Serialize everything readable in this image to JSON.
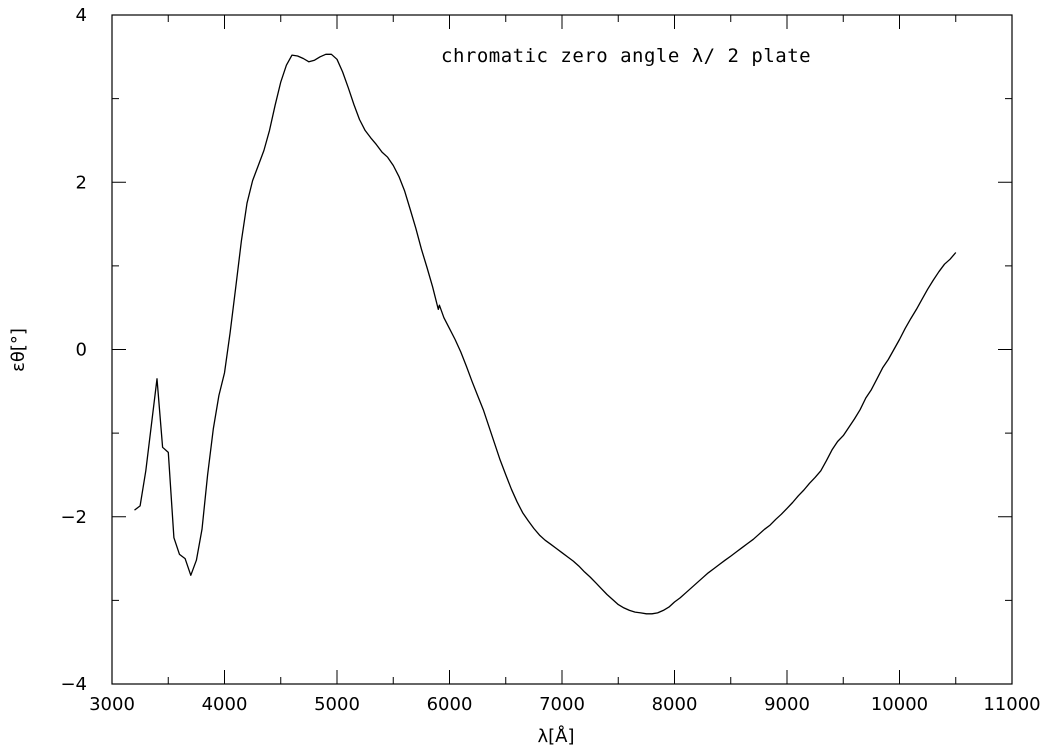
{
  "chart_data": {
    "type": "line",
    "title": "",
    "annotation": "chromatic zero angle λ/ 2 plate",
    "xlabel": "λ[Å]",
    "ylabel": "εθ[°]",
    "xlim": [
      3000,
      11000
    ],
    "ylim": [
      -4,
      4
    ],
    "x_major_ticks": [
      3000,
      4000,
      5000,
      6000,
      7000,
      8000,
      9000,
      10000,
      11000
    ],
    "x_tick_labels": [
      "3000",
      "4000",
      "5000",
      "6000",
      "7000",
      "8000",
      "9000",
      "10000",
      "11000"
    ],
    "y_major_ticks": [
      -4,
      -2,
      0,
      2,
      4
    ],
    "y_tick_labels": [
      "−4",
      "−2",
      "0",
      "2",
      "4"
    ],
    "x_minor_step": 1000,
    "y_minor_step": 1,
    "grid": false,
    "series": [
      {
        "points": [
          [
            3200,
            -1.92
          ],
          [
            3250,
            -1.87
          ],
          [
            3300,
            -1.45
          ],
          [
            3350,
            -0.9
          ],
          [
            3400,
            -0.35
          ],
          [
            3450,
            -1.17
          ],
          [
            3500,
            -1.23
          ],
          [
            3550,
            -2.25
          ],
          [
            3600,
            -2.45
          ],
          [
            3650,
            -2.5
          ],
          [
            3700,
            -2.7
          ],
          [
            3750,
            -2.52
          ],
          [
            3800,
            -2.15
          ],
          [
            3850,
            -1.5
          ],
          [
            3900,
            -0.95
          ],
          [
            3950,
            -0.55
          ],
          [
            4000,
            -0.28
          ],
          [
            4050,
            0.2
          ],
          [
            4100,
            0.75
          ],
          [
            4150,
            1.3
          ],
          [
            4200,
            1.75
          ],
          [
            4250,
            2.02
          ],
          [
            4300,
            2.2
          ],
          [
            4350,
            2.38
          ],
          [
            4400,
            2.62
          ],
          [
            4450,
            2.92
          ],
          [
            4500,
            3.2
          ],
          [
            4550,
            3.4
          ],
          [
            4600,
            3.52
          ],
          [
            4650,
            3.51
          ],
          [
            4700,
            3.48
          ],
          [
            4750,
            3.44
          ],
          [
            4800,
            3.46
          ],
          [
            4850,
            3.5
          ],
          [
            4900,
            3.53
          ],
          [
            4950,
            3.53
          ],
          [
            5000,
            3.47
          ],
          [
            5050,
            3.32
          ],
          [
            5100,
            3.13
          ],
          [
            5150,
            2.93
          ],
          [
            5200,
            2.75
          ],
          [
            5250,
            2.62
          ],
          [
            5300,
            2.53
          ],
          [
            5350,
            2.45
          ],
          [
            5400,
            2.36
          ],
          [
            5450,
            2.3
          ],
          [
            5500,
            2.2
          ],
          [
            5550,
            2.07
          ],
          [
            5600,
            1.9
          ],
          [
            5650,
            1.68
          ],
          [
            5700,
            1.45
          ],
          [
            5750,
            1.2
          ],
          [
            5800,
            0.98
          ],
          [
            5850,
            0.75
          ],
          [
            5900,
            0.48
          ],
          [
            5910,
            0.53
          ],
          [
            5950,
            0.38
          ],
          [
            6000,
            0.25
          ],
          [
            6050,
            0.12
          ],
          [
            6100,
            -0.03
          ],
          [
            6150,
            -0.2
          ],
          [
            6200,
            -0.38
          ],
          [
            6250,
            -0.55
          ],
          [
            6300,
            -0.72
          ],
          [
            6350,
            -0.92
          ],
          [
            6400,
            -1.12
          ],
          [
            6450,
            -1.32
          ],
          [
            6500,
            -1.5
          ],
          [
            6550,
            -1.67
          ],
          [
            6600,
            -1.82
          ],
          [
            6650,
            -1.95
          ],
          [
            6700,
            -2.05
          ],
          [
            6750,
            -2.14
          ],
          [
            6800,
            -2.22
          ],
          [
            6850,
            -2.28
          ],
          [
            6900,
            -2.33
          ],
          [
            6950,
            -2.38
          ],
          [
            7000,
            -2.43
          ],
          [
            7050,
            -2.48
          ],
          [
            7100,
            -2.53
          ],
          [
            7150,
            -2.59
          ],
          [
            7200,
            -2.66
          ],
          [
            7250,
            -2.72
          ],
          [
            7300,
            -2.79
          ],
          [
            7350,
            -2.86
          ],
          [
            7400,
            -2.93
          ],
          [
            7450,
            -2.99
          ],
          [
            7500,
            -3.05
          ],
          [
            7550,
            -3.09
          ],
          [
            7600,
            -3.12
          ],
          [
            7650,
            -3.14
          ],
          [
            7700,
            -3.15
          ],
          [
            7750,
            -3.16
          ],
          [
            7800,
            -3.16
          ],
          [
            7850,
            -3.15
          ],
          [
            7900,
            -3.12
          ],
          [
            7950,
            -3.08
          ],
          [
            8000,
            -3.02
          ],
          [
            8050,
            -2.97
          ],
          [
            8100,
            -2.91
          ],
          [
            8150,
            -2.85
          ],
          [
            8200,
            -2.79
          ],
          [
            8250,
            -2.73
          ],
          [
            8300,
            -2.67
          ],
          [
            8350,
            -2.62
          ],
          [
            8400,
            -2.57
          ],
          [
            8450,
            -2.52
          ],
          [
            8500,
            -2.47
          ],
          [
            8550,
            -2.42
          ],
          [
            8600,
            -2.37
          ],
          [
            8650,
            -2.32
          ],
          [
            8700,
            -2.27
          ],
          [
            8750,
            -2.21
          ],
          [
            8800,
            -2.15
          ],
          [
            8850,
            -2.1
          ],
          [
            8900,
            -2.03
          ],
          [
            8950,
            -1.97
          ],
          [
            9000,
            -1.9
          ],
          [
            9050,
            -1.83
          ],
          [
            9100,
            -1.75
          ],
          [
            9150,
            -1.68
          ],
          [
            9200,
            -1.6
          ],
          [
            9250,
            -1.53
          ],
          [
            9300,
            -1.45
          ],
          [
            9350,
            -1.33
          ],
          [
            9400,
            -1.2
          ],
          [
            9450,
            -1.1
          ],
          [
            9500,
            -1.03
          ],
          [
            9550,
            -0.93
          ],
          [
            9600,
            -0.83
          ],
          [
            9650,
            -0.72
          ],
          [
            9700,
            -0.58
          ],
          [
            9750,
            -0.48
          ],
          [
            9800,
            -0.35
          ],
          [
            9850,
            -0.22
          ],
          [
            9900,
            -0.12
          ],
          [
            9950,
            0.0
          ],
          [
            10000,
            0.12
          ],
          [
            10050,
            0.25
          ],
          [
            10100,
            0.37
          ],
          [
            10150,
            0.48
          ],
          [
            10200,
            0.6
          ],
          [
            10250,
            0.72
          ],
          [
            10300,
            0.83
          ],
          [
            10350,
            0.93
          ],
          [
            10400,
            1.02
          ],
          [
            10450,
            1.08
          ],
          [
            10500,
            1.16
          ]
        ]
      }
    ]
  },
  "colors": {
    "line": "#000000",
    "axes": "#000000",
    "background": "#ffffff"
  }
}
